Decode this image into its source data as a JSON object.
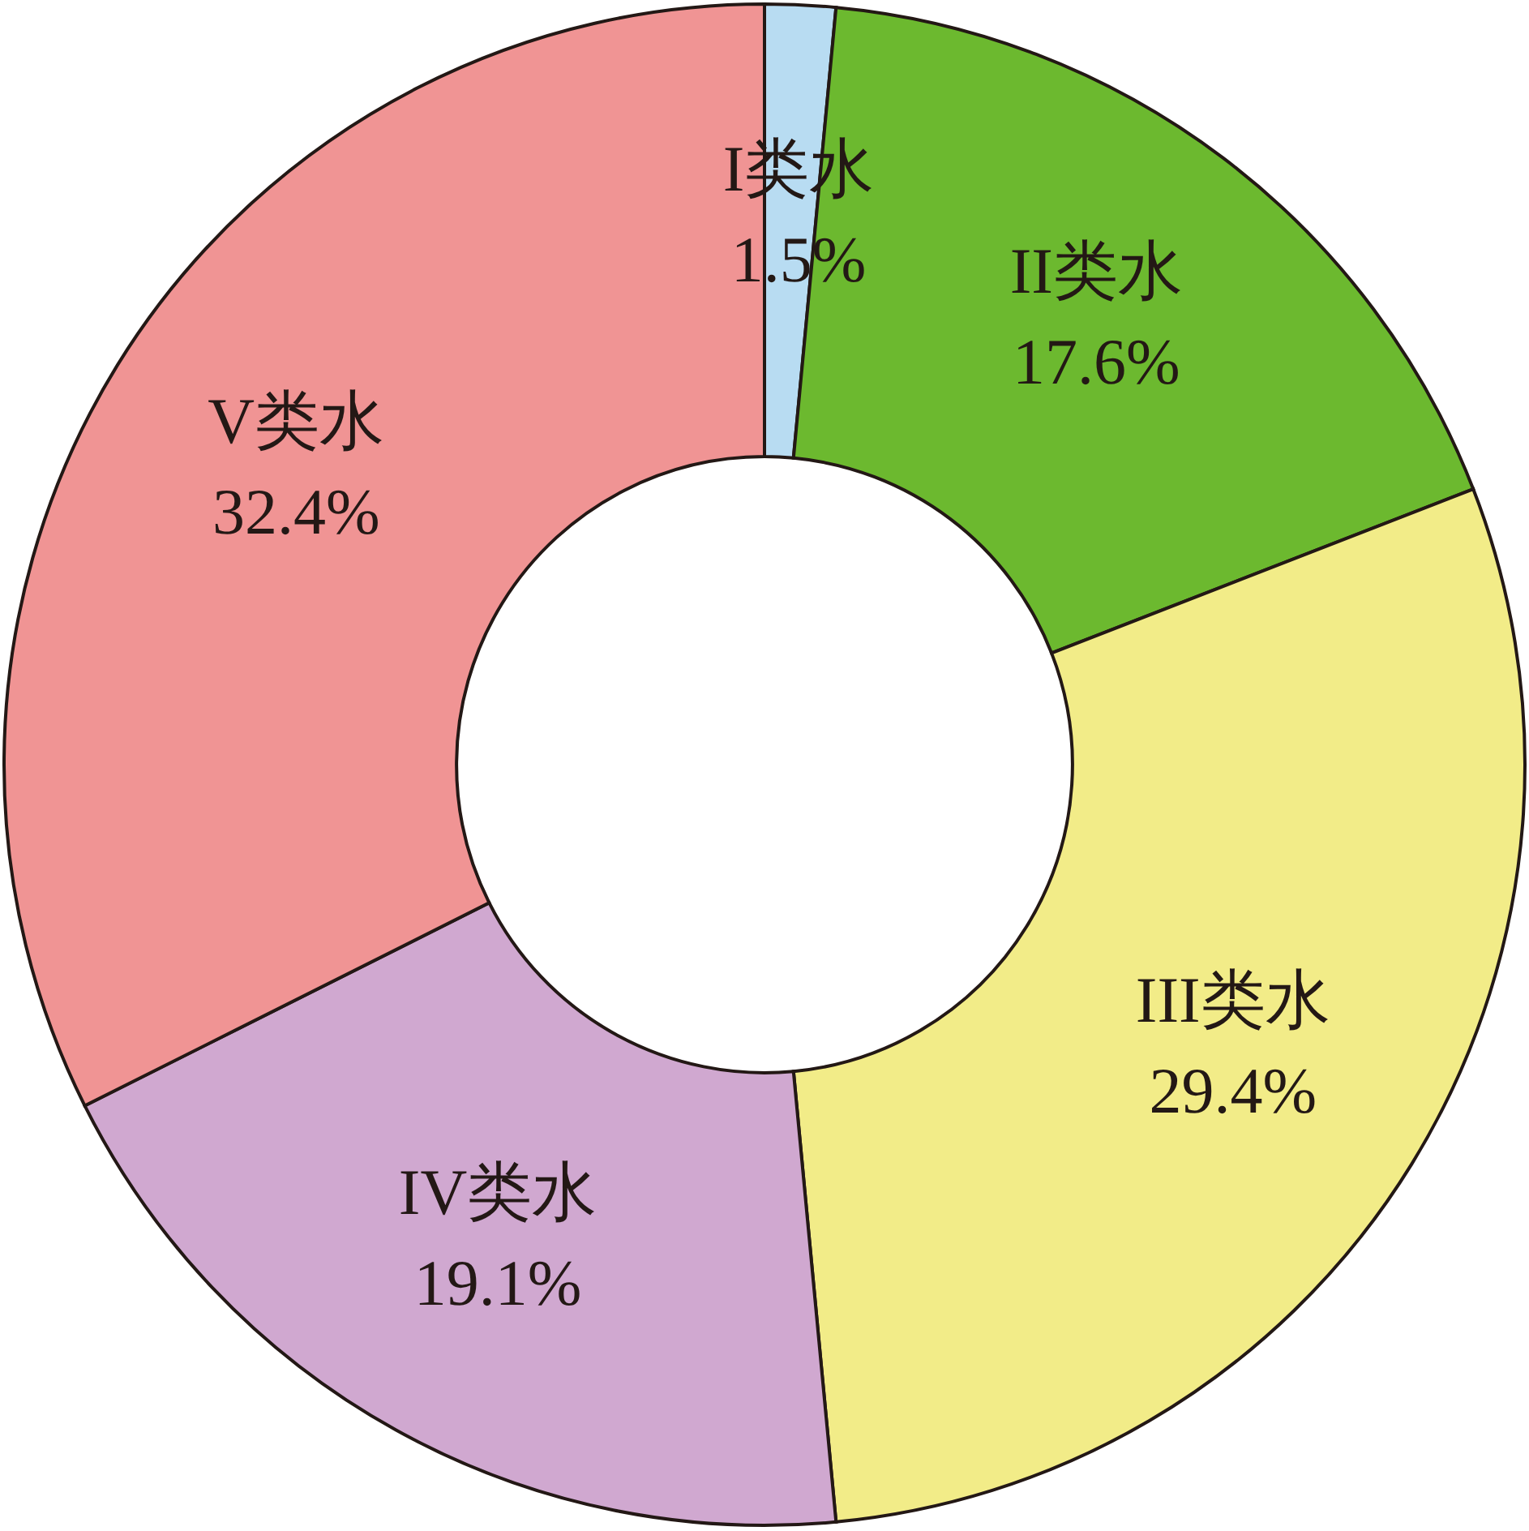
{
  "chart_data": {
    "type": "donut",
    "categories": [
      "I类水",
      "II类水",
      "III类水",
      "IV类水",
      "V类水"
    ],
    "values": [
      1.5,
      17.6,
      29.4,
      19.1,
      32.4
    ],
    "colors": [
      "#b8dcf2",
      "#6cb92f",
      "#f2ec88",
      "#d0a8d0",
      "#f09494"
    ],
    "value_labels": [
      "1.5%",
      "17.6%",
      "29.4%",
      "19.1%",
      "32.4%"
    ]
  }
}
